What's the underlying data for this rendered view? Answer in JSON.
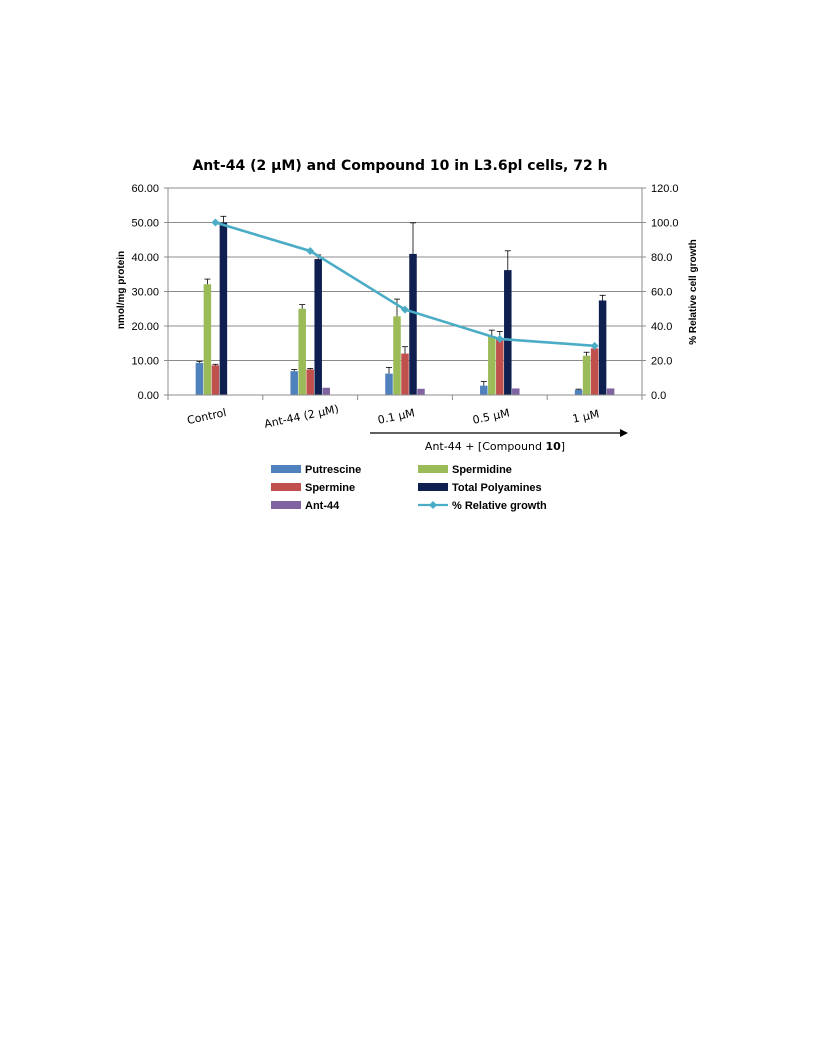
{
  "chart_data": {
    "type": "bar",
    "title": "Ant-44 (2 μM) and Compound 10 in L3.6pl  cells, 72 h",
    "ylabel": "nmol/mg protein",
    "y2label": "% Relative cell growth",
    "ylim": [
      0,
      60
    ],
    "y2lim": [
      0,
      120
    ],
    "yticks": [
      "0.00",
      "10.00",
      "20.00",
      "30.00",
      "40.00",
      "50.00",
      "60.00"
    ],
    "y2ticks": [
      "0.0",
      "20.0",
      "40.0",
      "60.0",
      "80.0",
      "100.0",
      "120.0"
    ],
    "grid": true,
    "categories": [
      "Control",
      "Ant-44 (2 μM)",
      "0.1 μM",
      "0.5 μM",
      "1 μM"
    ],
    "series": [
      {
        "name": "Putrescine",
        "color": "#4f81bd",
        "axis": "left",
        "values": [
          9.3,
          6.9,
          6.2,
          2.7,
          1.5
        ],
        "errors": [
          0.4,
          0.5,
          1.8,
          1.2,
          0.2
        ]
      },
      {
        "name": "Spermidine",
        "color": "#9bbb59",
        "axis": "left",
        "values": [
          32.1,
          25.0,
          22.8,
          17.0,
          11.4
        ],
        "errors": [
          1.5,
          1.2,
          5.0,
          1.8,
          1.0
        ]
      },
      {
        "name": "Spermine",
        "color": "#c0504d",
        "axis": "left",
        "values": [
          8.6,
          7.4,
          12.0,
          16.4,
          13.5
        ],
        "errors": [
          0.3,
          0.3,
          2.0,
          2.0,
          1.0
        ]
      },
      {
        "name": "Total Polyamines",
        "color": "#0f1f4f",
        "axis": "left",
        "values": [
          50.0,
          39.4,
          40.9,
          36.2,
          27.4
        ],
        "errors": [
          1.8,
          1.2,
          9.0,
          5.6,
          1.5
        ]
      },
      {
        "name": "Ant-44",
        "color": "#8064a2",
        "axis": "left",
        "values": [
          0.0,
          2.1,
          1.8,
          1.9,
          1.9
        ],
        "errors": [
          0,
          0,
          0,
          0,
          0
        ]
      },
      {
        "name": "% Relative growth",
        "type": "line",
        "color": "#4bacc6",
        "axis": "right",
        "values": [
          100.0,
          83.5,
          49.5,
          32.5,
          28.5
        ]
      }
    ],
    "arrow_label_prefix": "Ant-44 + [Compound ",
    "arrow_label_bold": "10",
    "arrow_label_suffix": "]",
    "legend_position": "bottom"
  }
}
